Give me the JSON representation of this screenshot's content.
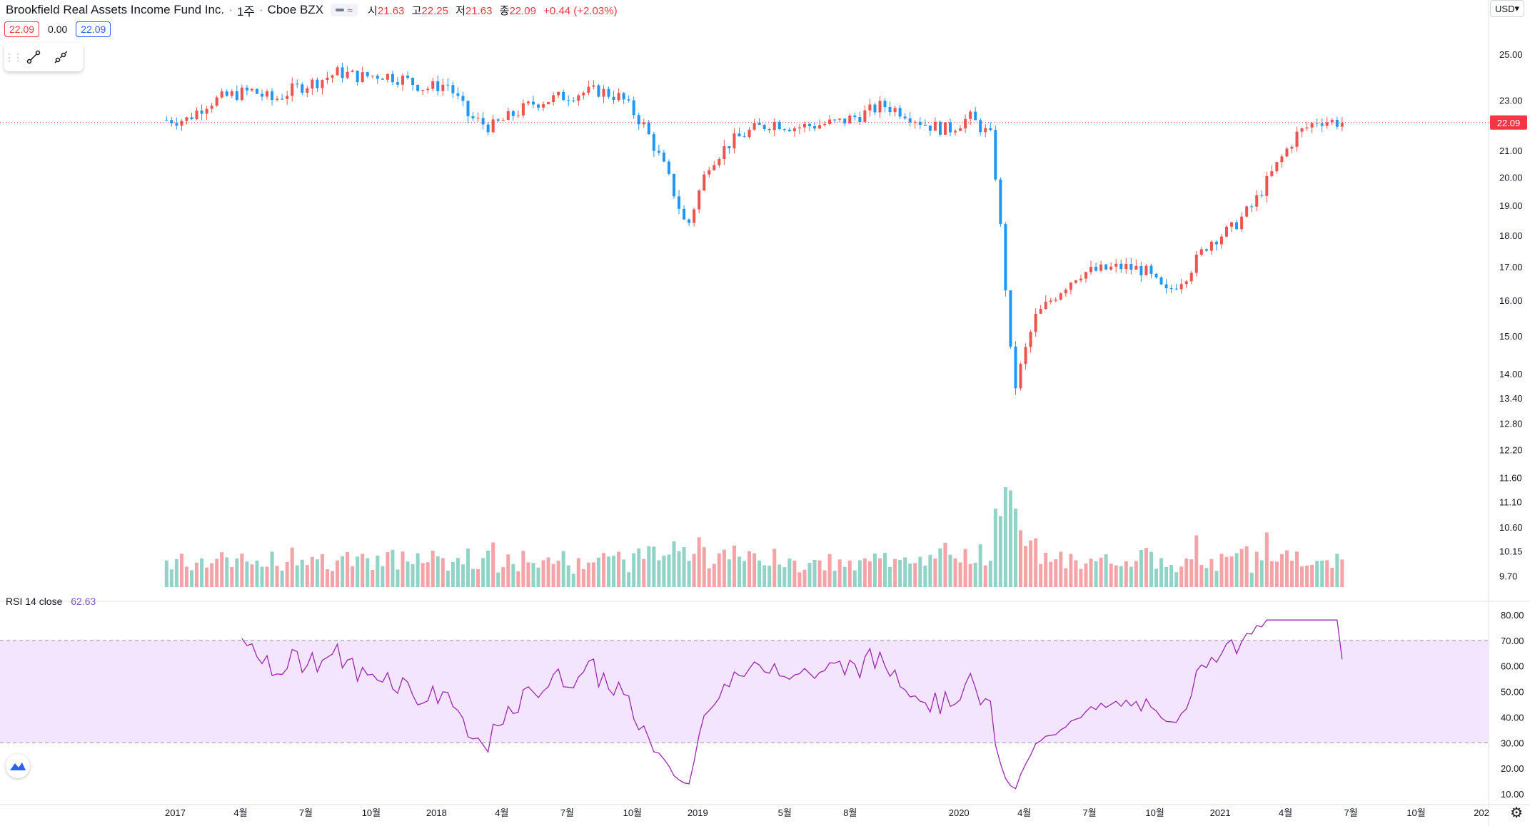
{
  "header": {
    "symbol": "Brookfield Real Assets Income Fund Inc.",
    "interval": "1주",
    "exchange": "Cboe BZX",
    "ohlc": {
      "open_label": "시",
      "open": "21.63",
      "high_label": "고",
      "high": "22.25",
      "low_label": "저",
      "low": "21.63",
      "close_label": "종",
      "close": "22.09",
      "change": "+0.44 (+2.03%)"
    }
  },
  "pricebar": {
    "sell": "22.09",
    "spread": "0.00",
    "buy": "22.09"
  },
  "currency": "USD",
  "rsi": {
    "label": "RSI 14 close",
    "value": "62.63"
  },
  "colors": {
    "up": "#ef5350",
    "down": "#2196f3",
    "vol_up": "#f4a3a6",
    "vol_down": "#91d3c7",
    "rsi_line": "#9c27b0",
    "rsi_band": "#f3e5fd"
  },
  "chart_data": {
    "type": "candlestick",
    "price_axis": {
      "scale": "log",
      "tick_labels": [
        "25.00",
        "23.00",
        "21.00",
        "20.00",
        "19.00",
        "18.00",
        "17.00",
        "16.00",
        "15.00",
        "14.00",
        "13.40",
        "12.80",
        "12.20",
        "11.60",
        "11.10",
        "10.60",
        "10.15",
        "9.70"
      ],
      "current_price": "22.09"
    },
    "time_axis": {
      "tick_labels": [
        "2017",
        "4월",
        "7월",
        "10월",
        "2018",
        "4월",
        "7월",
        "10월",
        "2019",
        "5월",
        "8월",
        "2020",
        "4월",
        "7월",
        "10월",
        "2021",
        "4월",
        "7월",
        "10월",
        "202"
      ],
      "range": [
        "2016-12",
        "2022-01"
      ]
    },
    "price_series": [
      [
        "2017-01",
        22.2
      ],
      [
        "2017-02",
        22.9
      ],
      [
        "2017-03",
        23.2
      ],
      [
        "2017-04",
        23.4
      ],
      [
        "2017-05",
        23.0
      ],
      [
        "2017-06",
        23.5
      ],
      [
        "2017-07",
        23.8
      ],
      [
        "2017-08",
        24.2
      ],
      [
        "2017-09",
        24.0
      ],
      [
        "2017-10",
        24.1
      ],
      [
        "2017-11",
        23.9
      ],
      [
        "2017-12",
        23.5
      ],
      [
        "2018-01",
        23.7
      ],
      [
        "2018-02",
        22.3
      ],
      [
        "2018-03",
        21.9
      ],
      [
        "2018-04",
        22.4
      ],
      [
        "2018-05",
        22.9
      ],
      [
        "2018-06",
        23.1
      ],
      [
        "2018-07",
        23.3
      ],
      [
        "2018-08",
        23.4
      ],
      [
        "2018-09",
        23.1
      ],
      [
        "2018-10",
        22.0
      ],
      [
        "2018-11",
        20.3
      ],
      [
        "2018-12",
        18.2
      ],
      [
        "2019-01",
        20.5
      ],
      [
        "2019-02",
        21.3
      ],
      [
        "2019-03",
        21.8
      ],
      [
        "2019-04",
        22.1
      ],
      [
        "2019-05",
        21.9
      ],
      [
        "2019-06",
        22.0
      ],
      [
        "2019-07",
        22.1
      ],
      [
        "2019-08",
        22.4
      ],
      [
        "2019-09",
        22.8
      ],
      [
        "2019-10",
        22.5
      ],
      [
        "2019-11",
        22.0
      ],
      [
        "2019-12",
        21.8
      ],
      [
        "2020-01",
        22.3
      ],
      [
        "2020-02",
        21.5
      ],
      [
        "2020-03",
        13.5
      ],
      [
        "2020-04",
        15.5
      ],
      [
        "2020-05",
        16.2
      ],
      [
        "2020-06",
        16.8
      ],
      [
        "2020-07",
        16.9
      ],
      [
        "2020-08",
        17.0
      ],
      [
        "2020-09",
        16.9
      ],
      [
        "2020-10",
        16.2
      ],
      [
        "2020-11",
        16.8
      ],
      [
        "2020-12",
        17.8
      ],
      [
        "2021-01",
        18.2
      ],
      [
        "2021-02",
        19.0
      ],
      [
        "2021-03",
        20.3
      ],
      [
        "2021-04",
        21.6
      ],
      [
        "2021-05",
        22.2
      ],
      [
        "2021-06",
        22.09
      ]
    ],
    "volume_axis": {
      "max": 8
    },
    "rsi_series": {
      "name": "RSI 14 close",
      "axis_labels": [
        "80.00",
        "70.00",
        "60.00",
        "50.00",
        "40.00",
        "30.00",
        "20.00",
        "10.00"
      ],
      "upper_band": 70,
      "lower_band": 30,
      "last": 62.63
    }
  }
}
